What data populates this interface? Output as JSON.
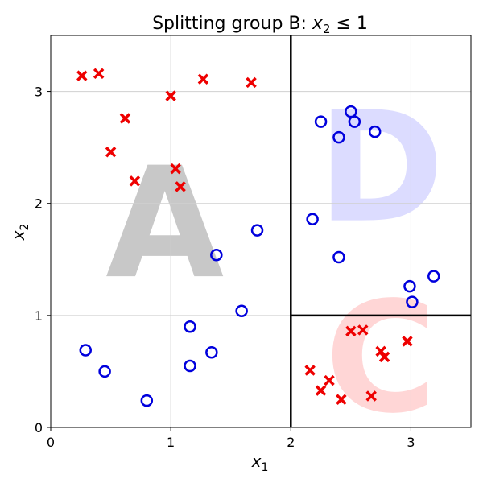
{
  "chart_data": {
    "type": "scatter",
    "title": "Splitting group B: x2 ≤ 1",
    "title_parts": {
      "text": "Splitting group B: ",
      "var": "x",
      "sub": "2",
      "rel": " ≤ 1"
    },
    "xlabel": {
      "var": "x",
      "sub": "1"
    },
    "ylabel": {
      "var": "x",
      "sub": "2"
    },
    "xlim": [
      0,
      3.5
    ],
    "ylim": [
      0,
      3.5
    ],
    "xticks": [
      0,
      1,
      2,
      3
    ],
    "yticks": [
      0,
      1,
      2,
      3
    ],
    "grid": true,
    "colors": {
      "cross": "#ee0000",
      "circle": "#0000dd"
    },
    "splits": [
      {
        "orientation": "vertical",
        "x": 2,
        "y_from": 0,
        "y_to": 3.5
      },
      {
        "orientation": "horizontal",
        "y": 1,
        "x_from": 2,
        "x_to": 3.5
      }
    ],
    "regions": [
      {
        "label": "A",
        "color": "#c8c8c8",
        "x": 0.95,
        "y": 1.35
      },
      {
        "label": "D",
        "color": "#dcdcff",
        "x": 2.75,
        "y": 1.85
      },
      {
        "label": "C",
        "color": "#ffd6d6",
        "x": 2.75,
        "y": 0.15
      }
    ],
    "series": [
      {
        "marker": "x",
        "points": [
          [
            0.26,
            3.14
          ],
          [
            0.4,
            3.16
          ],
          [
            0.62,
            2.76
          ],
          [
            0.5,
            2.46
          ],
          [
            0.7,
            2.2
          ],
          [
            1.0,
            2.96
          ],
          [
            1.27,
            3.11
          ],
          [
            1.67,
            3.08
          ],
          [
            1.04,
            2.31
          ],
          [
            1.08,
            2.15
          ],
          [
            2.16,
            0.51
          ],
          [
            2.25,
            0.33
          ],
          [
            2.32,
            0.42
          ],
          [
            2.42,
            0.25
          ],
          [
            2.5,
            0.86
          ],
          [
            2.6,
            0.87
          ],
          [
            2.67,
            0.28
          ],
          [
            2.75,
            0.68
          ],
          [
            2.78,
            0.63
          ],
          [
            2.97,
            0.77
          ]
        ]
      },
      {
        "marker": "o",
        "points": [
          [
            0.29,
            0.69
          ],
          [
            0.45,
            0.5
          ],
          [
            0.8,
            0.24
          ],
          [
            1.16,
            0.9
          ],
          [
            1.16,
            0.55
          ],
          [
            1.34,
            0.67
          ],
          [
            1.38,
            1.54
          ],
          [
            1.59,
            1.04
          ],
          [
            1.72,
            1.76
          ],
          [
            2.18,
            1.86
          ],
          [
            2.25,
            2.73
          ],
          [
            2.4,
            2.59
          ],
          [
            2.5,
            2.82
          ],
          [
            2.53,
            2.73
          ],
          [
            2.7,
            2.64
          ],
          [
            2.4,
            1.52
          ],
          [
            2.99,
            1.26
          ],
          [
            3.01,
            1.12
          ],
          [
            3.19,
            1.35
          ]
        ]
      }
    ]
  }
}
